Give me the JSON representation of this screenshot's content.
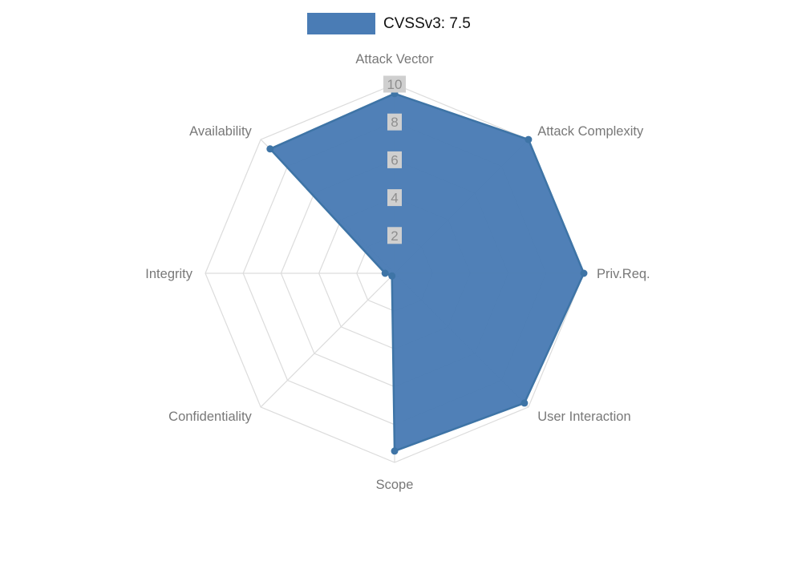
{
  "legend": {
    "label": "CVSSv3: 7.5"
  },
  "colors": {
    "series_fill": "#4a7cb5",
    "series_border": "#3e74a6",
    "point_fill": "#3e74a6",
    "grid_line": "#dcdcdc",
    "tick_backdrop": "#cfcfcf",
    "tick_text": "#8e8e8e",
    "axis_label_text": "#787878",
    "legend_text": "#111111"
  },
  "chart_data": {
    "type": "radar",
    "title": "",
    "categories": [
      "Attack Vector",
      "Attack Complexity",
      "Priv.Req.",
      "User Interaction",
      "Scope",
      "Confidentiality",
      "Integrity",
      "Availability"
    ],
    "series": [
      {
        "name": "CVSSv3: 7.5",
        "values": [
          9.5,
          10,
          10,
          9.7,
          9.4,
          0.2,
          0.5,
          9.3
        ]
      }
    ],
    "rlim": [
      0,
      10
    ],
    "ticks": [
      2,
      4,
      6,
      8,
      10
    ],
    "grid": true,
    "legend_position": "top"
  }
}
